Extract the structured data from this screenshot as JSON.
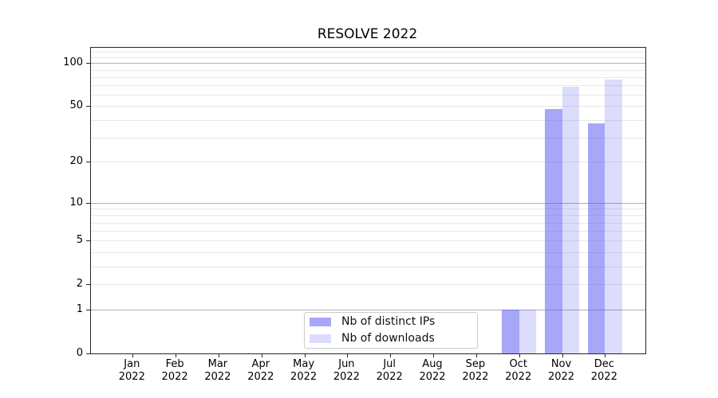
{
  "chart_data": {
    "type": "bar",
    "title": "RESOLVE 2022",
    "categories": [
      "Jan\n2022",
      "Feb\n2022",
      "Mar\n2022",
      "Apr\n2022",
      "May\n2022",
      "Jun\n2022",
      "Jul\n2022",
      "Aug\n2022",
      "Sep\n2022",
      "Oct\n2022",
      "Nov\n2022",
      "Dec\n2022"
    ],
    "series": [
      {
        "name": "Nb of distinct IPs",
        "color": "rgba(80,80,240,0.5)",
        "values": [
          0,
          0,
          0,
          0,
          0,
          0,
          0,
          0,
          0,
          1,
          48,
          38
        ]
      },
      {
        "name": "Nb of downloads",
        "color": "rgba(80,80,240,0.2)",
        "values": [
          0,
          0,
          0,
          0,
          0,
          0,
          0,
          0,
          0,
          1,
          68,
          77
        ]
      }
    ],
    "xlabel": "",
    "ylabel": "",
    "y_scale": "log10(value+1)",
    "ylim": [
      0,
      128
    ],
    "y_axis_ticks": [
      0,
      1,
      2,
      5,
      10,
      20,
      50,
      100
    ],
    "y_gridlines_major": [
      1,
      10,
      100
    ],
    "y_gridlines_minor": [
      2,
      3,
      4,
      5,
      6,
      7,
      8,
      9,
      20,
      30,
      40,
      50,
      60,
      70,
      80,
      90,
      110,
      120
    ],
    "grid": "horizontal",
    "legend_position": "lower center"
  },
  "colors": {
    "background": "#ffffff",
    "axis_border": "#262626",
    "grid_major": "#b0b0b0",
    "grid_minor": "#e8e8e8",
    "tick_text": "#000000",
    "legend_border": "#cccccc",
    "series_distinct_ips": "rgba(80,80,240,0.5)",
    "series_downloads": "rgba(80,80,240,0.2)"
  }
}
